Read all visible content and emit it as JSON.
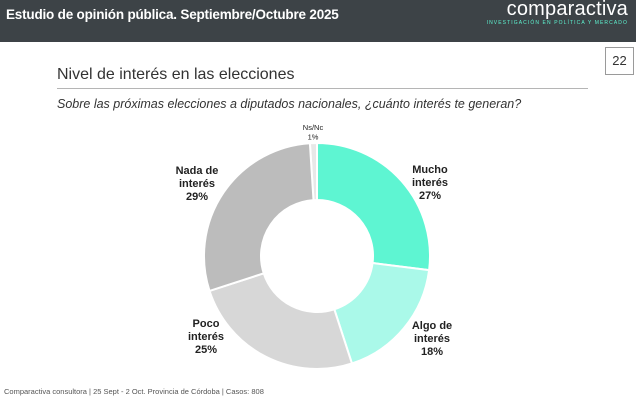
{
  "header": {
    "title": "Estudio de opinión pública. Septiembre/Octubre 2025",
    "logo": "comparactiva",
    "logo_tagline": "INVESTIGACIÓN EN POLÍTICA Y MERCADO"
  },
  "page_number": "22",
  "section_title": "Nivel de interés en las elecciones",
  "question": "Sobre las próximas elecciones a diputados nacionales, ¿cuánto interés te generan?",
  "footer": "Comparactiva consultora | 25 Sept - 2 Oct. Provincia de Córdoba | Casos: 808",
  "chart_data": {
    "type": "pie",
    "variant": "donut",
    "title": "Nivel de interés en las elecciones",
    "slices": [
      {
        "name": "Mucho interés",
        "label_lines": [
          "Mucho",
          "interés"
        ],
        "value": 27,
        "value_label": "27%",
        "color": "#5ef5d2"
      },
      {
        "name": "Algo de interés",
        "label_lines": [
          "Algo de",
          "interés"
        ],
        "value": 18,
        "value_label": "18%",
        "color": "#aaf9e9"
      },
      {
        "name": "Poco interés",
        "label_lines": [
          "Poco",
          "interés"
        ],
        "value": 25,
        "value_label": "25%",
        "color": "#d7d7d7"
      },
      {
        "name": "Nada de interés",
        "label_lines": [
          "Nada de",
          "interés"
        ],
        "value": 29,
        "value_label": "29%",
        "color": "#bcbcbc"
      },
      {
        "name": "Ns/Nc",
        "label_lines": [
          "Ns/Nc"
        ],
        "value": 1,
        "value_label": "1%",
        "color": "#e8e8e8"
      }
    ]
  }
}
